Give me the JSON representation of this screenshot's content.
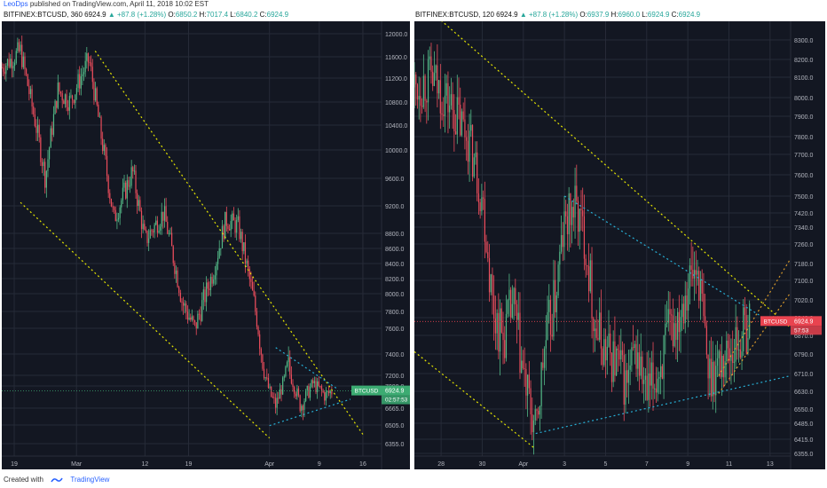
{
  "publisher": {
    "author": "LeoDps",
    "text": "published on TradingView.com, April 11, 2018 10:02 EST"
  },
  "footer": {
    "created_with": "Created with",
    "brand": "TradingView"
  },
  "colors": {
    "background": "#131722",
    "grid": "#262b38",
    "up": "#53b987",
    "down": "#eb4d5c",
    "yellow_line": "#e6e600",
    "cyan_line": "#27b0d6",
    "orange_line": "#d99a2b",
    "price_tag": "#3cab72",
    "price_tag_right": "#e9434f"
  },
  "chart_data": [
    {
      "type": "candlestick",
      "header": {
        "symbol": "BITFINEX:BTCUSD, 360",
        "last": "6924.9",
        "change": "▲ +87.8 (+1.28%)",
        "o_label": "O:",
        "o": "6850.2",
        "h_label": "H:",
        "h": "7017.4",
        "l_label": "L:",
        "l": "6840.2",
        "c_label": "C:",
        "c": "6924.9"
      },
      "y_ticks": [
        "12000.0",
        "11600.0",
        "11200.0",
        "10800.0",
        "10400.0",
        "10000.0",
        "9600.0",
        "9200.0",
        "8800.0",
        "8600.0",
        "8400.0",
        "8200.0",
        "8000.0",
        "7800.0",
        "7600.0",
        "7400.0",
        "7200.0",
        "7000.0",
        "6665.0",
        "6505.0",
        "6355.0"
      ],
      "y_tick_values": [
        12000,
        11600,
        11200,
        10800,
        10400,
        10000,
        9600,
        9200,
        8800,
        8600,
        8400,
        8200,
        8000,
        7800,
        7600,
        7400,
        7200,
        7000,
        6665,
        6505,
        6355
      ],
      "x_ticks": [
        "19",
        "Mar",
        "12",
        "19",
        "Apr",
        "9",
        "16"
      ],
      "x_tick_days": [
        -10,
        0,
        11,
        18,
        31,
        39,
        46
      ],
      "x_range_days": [
        -12,
        49
      ],
      "price_label": "BTCUSD",
      "price_value": "6924.9",
      "countdown": "02:57:53",
      "price_level": 6924.9,
      "trend_points": [
        [
          -12,
          11400
        ],
        [
          -9,
          11700
        ],
        [
          -5,
          9600
        ],
        [
          -3,
          11000
        ],
        [
          -1,
          10800
        ],
        [
          2,
          11550
        ],
        [
          4,
          10200
        ],
        [
          6,
          9000
        ],
        [
          9,
          9700
        ],
        [
          11,
          8700
        ],
        [
          14,
          9100
        ],
        [
          17,
          7900
        ],
        [
          19,
          7600
        ],
        [
          22,
          8300
        ],
        [
          24,
          9000
        ],
        [
          26,
          8900
        ],
        [
          29,
          7700
        ],
        [
          31,
          6900
        ],
        [
          32,
          6700
        ],
        [
          34,
          7300
        ],
        [
          36,
          6700
        ],
        [
          38,
          7050
        ],
        [
          40,
          6850
        ],
        [
          41,
          6924.9
        ]
      ],
      "lines": [
        {
          "color": "yellow",
          "from": [
            -9,
            9250
          ],
          "to": [
            31,
            6400
          ]
        },
        {
          "color": "yellow",
          "from": [
            3,
            11700
          ],
          "to": [
            46,
            6430
          ]
        },
        {
          "color": "cyan",
          "from": [
            32,
            7450
          ],
          "to": [
            42,
            6950
          ]
        },
        {
          "color": "cyan",
          "from": [
            31,
            6500
          ],
          "to": [
            44,
            6800
          ]
        }
      ]
    },
    {
      "type": "candlestick",
      "header": {
        "symbol": "BITFINEX:BTCUSD, 120",
        "last": "6924.9",
        "change": "▲ +87.8 (+1.28%)",
        "o_label": "O:",
        "o": "6937.9",
        "h_label": "H:",
        "h": "6960.0",
        "l_label": "L:",
        "l": "6924.9",
        "c_label": "C:",
        "c": "6924.9"
      },
      "y_ticks": [
        "8300.0",
        "8200.0",
        "8100.0",
        "8000.0",
        "7900.0",
        "7800.0",
        "7700.0",
        "7600.0",
        "7500.0",
        "7420.0",
        "7340.0",
        "7260.0",
        "7180.0",
        "7100.0",
        "7020.0",
        "6940.0",
        "6870.0",
        "6790.0",
        "6710.0",
        "6630.0",
        "6550.0",
        "6485.0",
        "6415.0",
        "6355.0"
      ],
      "y_tick_values": [
        8300,
        8200,
        8100,
        8000,
        7900,
        7800,
        7700,
        7600,
        7500,
        7420,
        7340,
        7260,
        7180,
        7100,
        7020,
        6940,
        6870,
        6790,
        6710,
        6630,
        6550,
        6485,
        6415,
        6355
      ],
      "x_ticks": [
        "28",
        "30",
        "Apr",
        "3",
        "5",
        "7",
        "9",
        "11",
        "13"
      ],
      "x_tick_days": [
        28,
        30,
        32,
        34,
        36,
        38,
        40,
        42,
        44
      ],
      "x_range_days": [
        26.7,
        45
      ],
      "price_label": "BTCUSD",
      "price_value": "6924.9",
      "countdown": "57:53",
      "price_level": 6924.9,
      "trend_points": [
        [
          26.7,
          8050
        ],
        [
          27.5,
          8100
        ],
        [
          28.5,
          7950
        ],
        [
          29.3,
          7800
        ],
        [
          30,
          7500
        ],
        [
          30.5,
          7000
        ],
        [
          31,
          6850
        ],
        [
          31.5,
          7000
        ],
        [
          32,
          6700
        ],
        [
          32.6,
          6430
        ],
        [
          33,
          6800
        ],
        [
          33.5,
          7000
        ],
        [
          34,
          7350
        ],
        [
          34.5,
          7450
        ],
        [
          35,
          7300
        ],
        [
          35.5,
          6900
        ],
        [
          36,
          6800
        ],
        [
          36.6,
          6750
        ],
        [
          37,
          6650
        ],
        [
          37.5,
          6800
        ],
        [
          38,
          6600
        ],
        [
          38.5,
          6700
        ],
        [
          39,
          6850
        ],
        [
          39.5,
          6950
        ],
        [
          40,
          7100
        ],
        [
          40.5,
          7150
        ],
        [
          41,
          6700
        ],
        [
          41.5,
          6750
        ],
        [
          42,
          6800
        ],
        [
          42.5,
          6850
        ],
        [
          43,
          6924.9
        ]
      ],
      "lines": [
        {
          "color": "yellow",
          "from": [
            28,
            8400
          ],
          "to": [
            45,
            6900
          ]
        },
        {
          "color": "yellow",
          "from": [
            26.7,
            6800
          ],
          "to": [
            32.5,
            6380
          ]
        },
        {
          "color": "cyan",
          "from": [
            34,
            7500
          ],
          "to": [
            43.5,
            6950
          ]
        },
        {
          "color": "cyan",
          "from": [
            32.6,
            6440
          ],
          "to": [
            45,
            6700
          ]
        },
        {
          "color": "orange",
          "from": [
            41.5,
            6700
          ],
          "to": [
            45,
            7200
          ]
        },
        {
          "color": "orange",
          "from": [
            41.5,
            6620
          ],
          "to": [
            45,
            7050
          ]
        }
      ]
    }
  ]
}
